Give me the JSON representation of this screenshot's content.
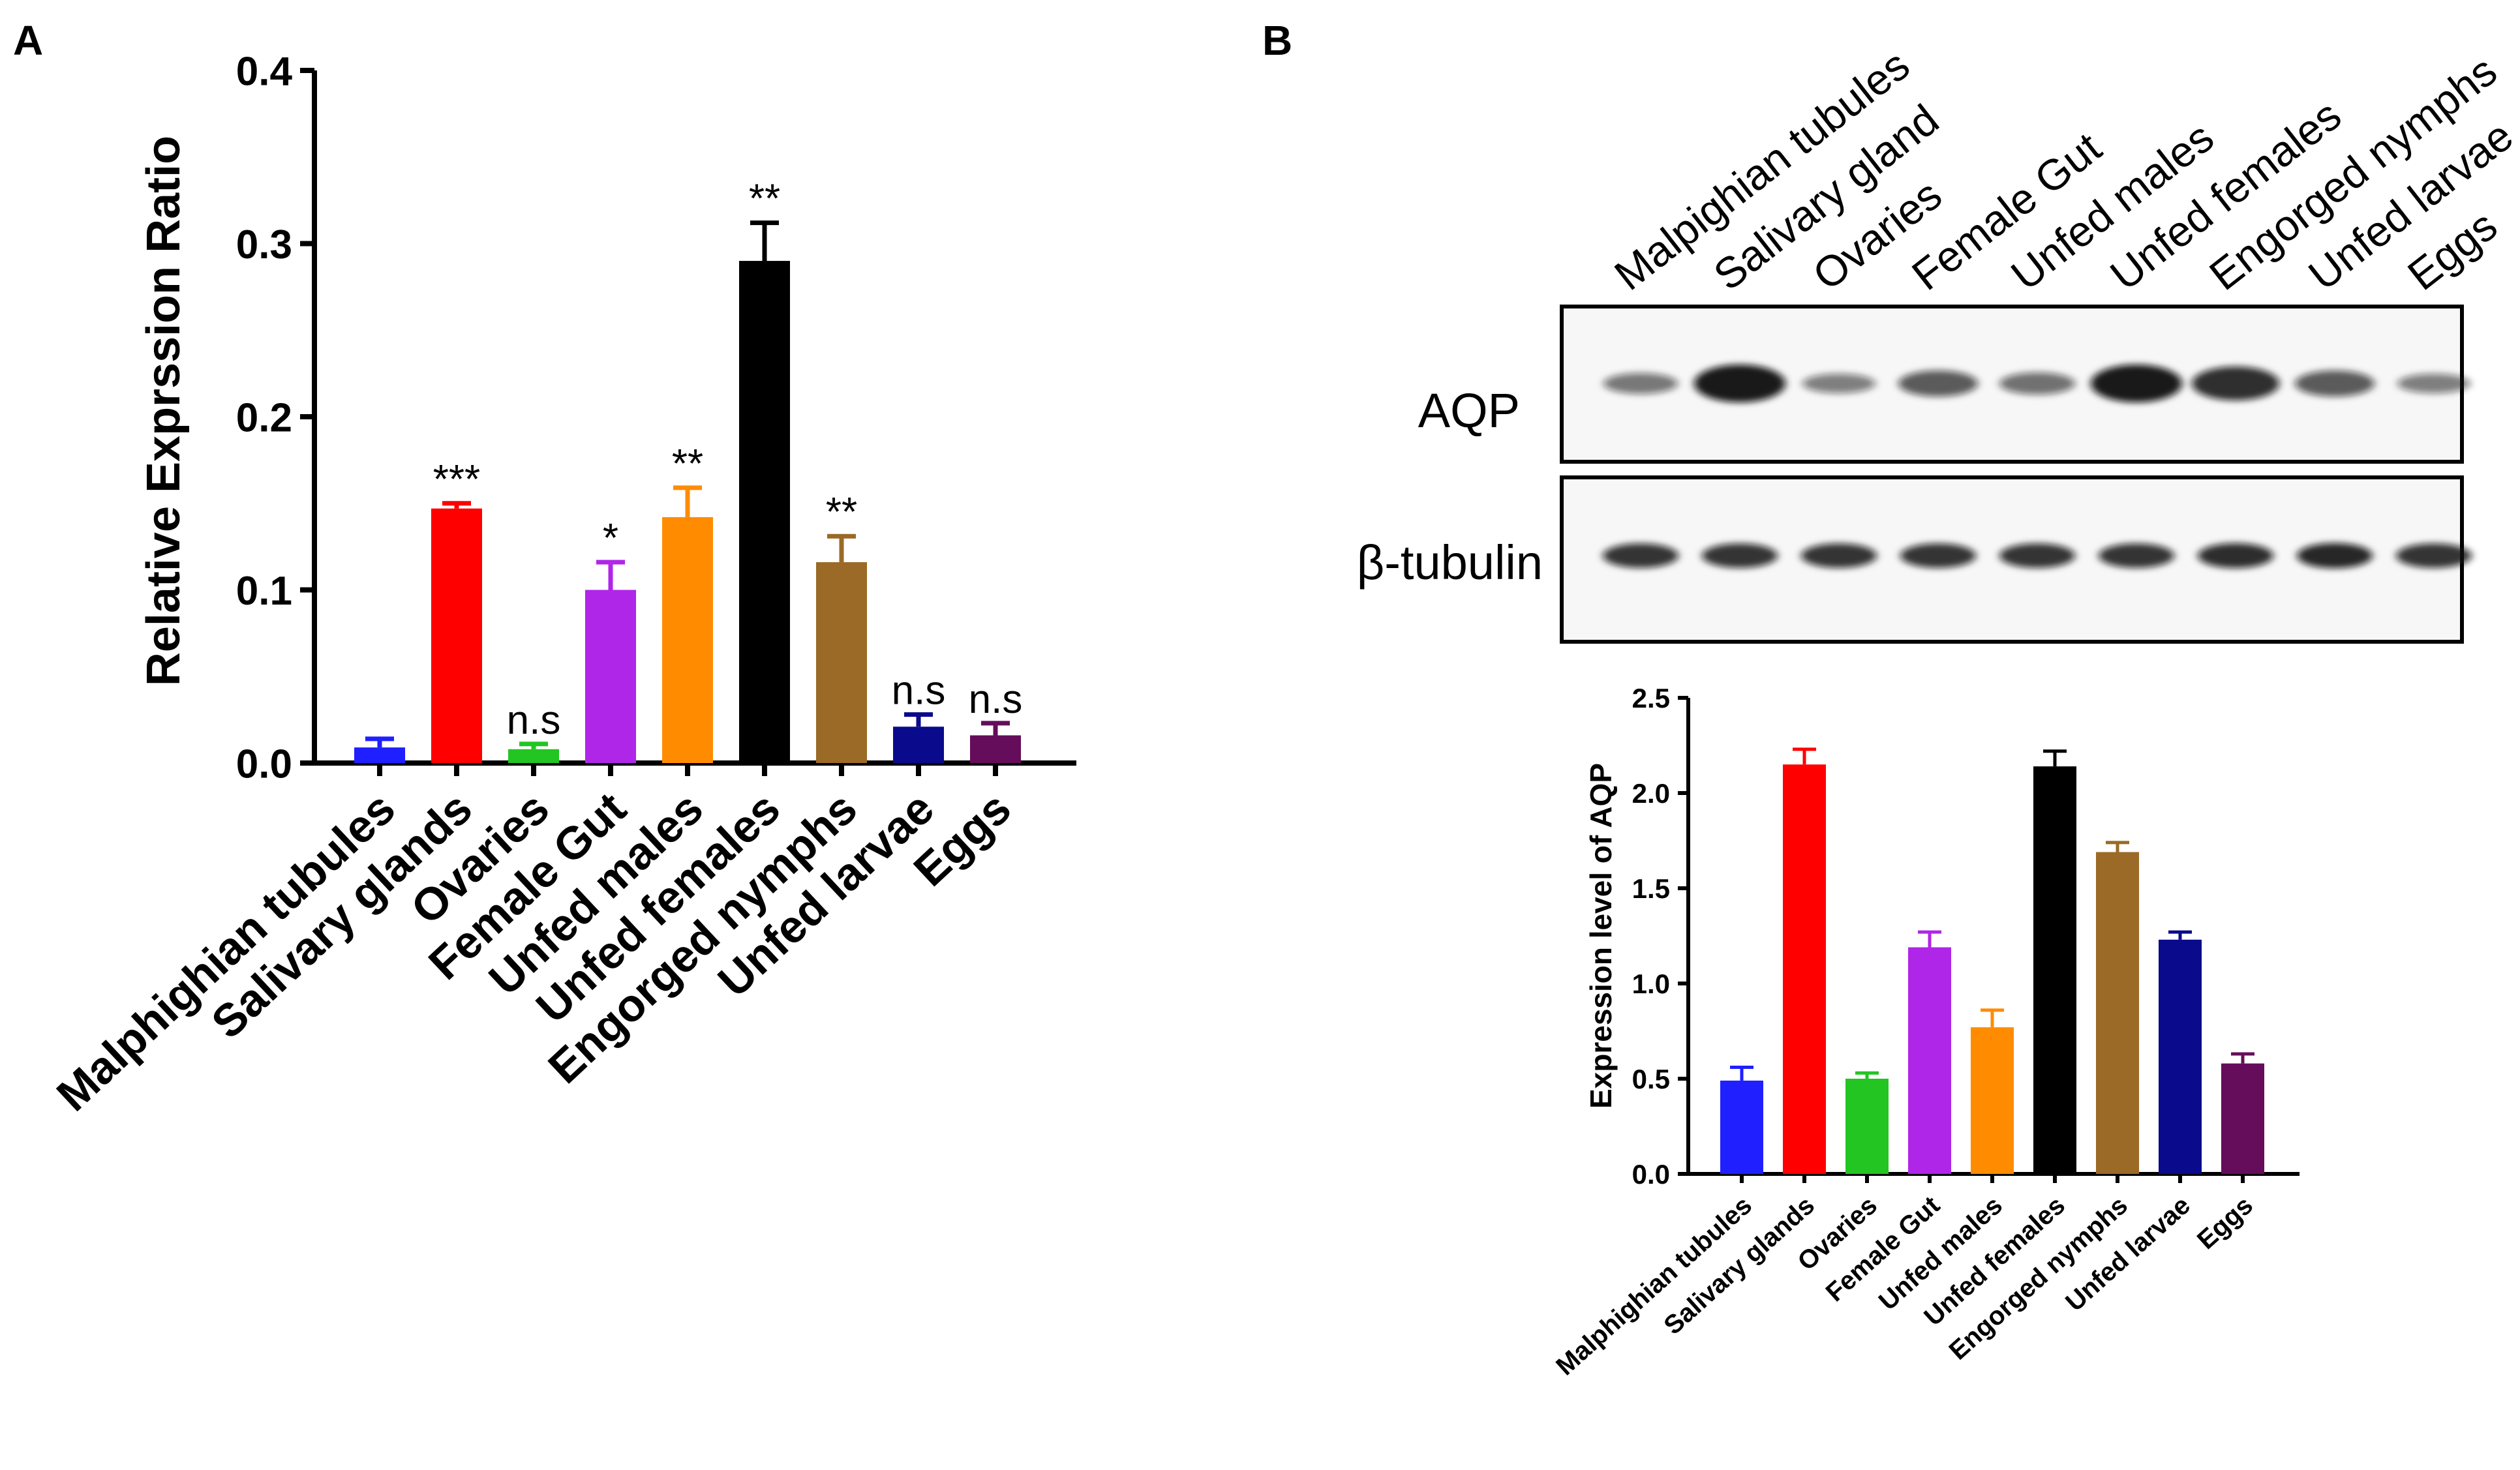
{
  "panel_labels": {
    "a": "A",
    "b": "B"
  },
  "chart_data": [
    {
      "type": "bar",
      "panel": "A",
      "title": "",
      "xlabel": "",
      "ylabel": "Relative Exprssion Ratio",
      "ylim": [
        0,
        0.4
      ],
      "yticks": [
        "0.0",
        "0.1",
        "0.2",
        "0.3",
        "0.4"
      ],
      "ytick_values": [
        0,
        0.1,
        0.2,
        0.3,
        0.4
      ],
      "grid": false,
      "categories": [
        "Malphighian tubules",
        "Salivary glands",
        "Ovaries",
        "Female Gut",
        "Unfed males",
        "Unfed females",
        "Engorged nymphs",
        "Unfed larvae",
        "Eggs"
      ],
      "values": [
        0.009,
        0.147,
        0.008,
        0.1,
        0.142,
        0.29,
        0.116,
        0.021,
        0.016
      ],
      "errors": [
        0.005,
        0.003,
        0.003,
        0.016,
        0.017,
        0.022,
        0.015,
        0.007,
        0.007
      ],
      "significance": [
        "",
        "***",
        "n.s",
        "*",
        "**",
        "**",
        "**",
        "n.s",
        "n.s"
      ],
      "colors": [
        "#1f1fff",
        "#ff0000",
        "#22c522",
        "#b026e8",
        "#ff8c00",
        "#000000",
        "#9a6a26",
        "#0a0a8c",
        "#650d5a"
      ]
    },
    {
      "type": "bar",
      "panel": "B",
      "title": "",
      "xlabel": "",
      "ylabel": "Expression level of AQP",
      "ylim": [
        0,
        2.5
      ],
      "yticks": [
        "0.0",
        "0.5",
        "1.0",
        "1.5",
        "2.0",
        "2.5"
      ],
      "ytick_values": [
        0,
        0.5,
        1.0,
        1.5,
        2.0,
        2.5
      ],
      "grid": false,
      "categories": [
        "Malphighian tubules",
        "Salivary glands",
        "Ovaries",
        "Female Gut",
        "Unfed males",
        "Unfed females",
        "Engorged nymphs",
        "Unfed larvae",
        "Eggs"
      ],
      "values": [
        0.49,
        2.15,
        0.5,
        1.19,
        0.77,
        2.14,
        1.69,
        1.23,
        0.58
      ],
      "errors": [
        0.07,
        0.08,
        0.03,
        0.08,
        0.09,
        0.08,
        0.05,
        0.04,
        0.05
      ],
      "colors": [
        "#1f1fff",
        "#ff0000",
        "#22c522",
        "#b026e8",
        "#ff8c00",
        "#000000",
        "#9a6a26",
        "#0a0a8c",
        "#650d5a"
      ]
    }
  ],
  "blot": {
    "lane_labels": [
      "Malpighian tubules",
      "Salivary gland",
      "Ovaries",
      "Female Gut",
      "Unfed males",
      "Unfed females",
      "Engorged nymphs",
      "Unfed larvae",
      "Eggs"
    ],
    "aqp_label": "AQP",
    "tubulin_label": "β-tubulin",
    "aqp_intensity": [
      0.35,
      1.0,
      0.3,
      0.55,
      0.4,
      1.0,
      0.85,
      0.55,
      0.3
    ],
    "tubulin_intensity": [
      0.8,
      0.8,
      0.8,
      0.8,
      0.8,
      0.8,
      0.85,
      0.9,
      0.8
    ]
  }
}
